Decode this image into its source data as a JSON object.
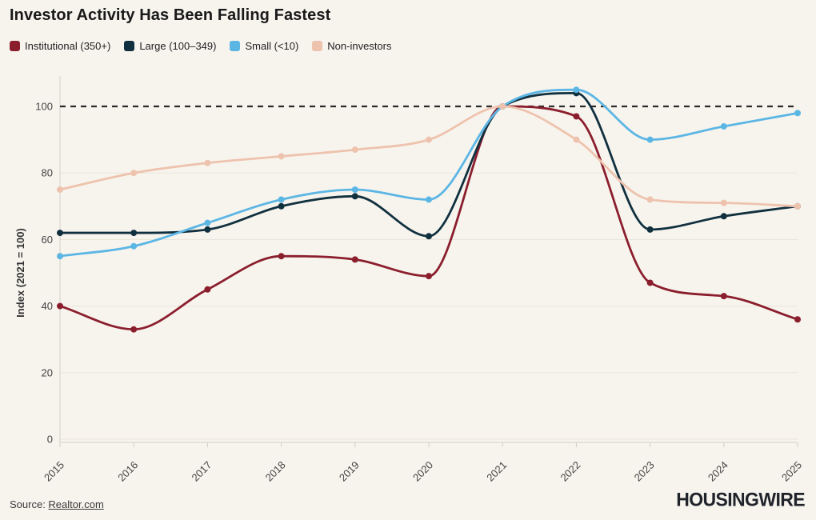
{
  "title": "Investor Activity Has Been Falling Fastest",
  "footer": {
    "source_prefix": "Source: ",
    "source_link": "Realtor.com",
    "brand": "HOUSINGWIRE"
  },
  "colors": {
    "background": "#f7f4ee",
    "gridline": "#e9e5dc",
    "axis": "#d3cfc6",
    "tick_text": "#434343",
    "reference_line": "#2b2b2b"
  },
  "chart_data": {
    "type": "line",
    "x": [
      2015,
      2016,
      2017,
      2018,
      2019,
      2020,
      2021,
      2022,
      2023,
      2024,
      2025
    ],
    "series": [
      {
        "name": "Institutional (350+)",
        "color": "#8b1e2d",
        "values": [
          40,
          33,
          45,
          55,
          54,
          49,
          100,
          97,
          47,
          43,
          36
        ]
      },
      {
        "name": "Large (100–349)",
        "color": "#11303f",
        "values": [
          62,
          62,
          63,
          70,
          73,
          61,
          100,
          104,
          63,
          67,
          70
        ]
      },
      {
        "name": "Small (<10)",
        "color": "#5cb6e4",
        "values": [
          55,
          58,
          65,
          72,
          75,
          72,
          100,
          105,
          90,
          94,
          98
        ]
      },
      {
        "name": "Non-investors",
        "color": "#eec3ae",
        "values": [
          75,
          80,
          83,
          85,
          87,
          90,
          100,
          90,
          72,
          71,
          70
        ]
      }
    ],
    "title": "Investor Activity Has Been Falling Fastest",
    "xlabel": "",
    "ylabel": "Index (2021 = 100)",
    "yticks": [
      0,
      20,
      40,
      60,
      80,
      100
    ],
    "ylim": [
      0,
      109
    ],
    "reference_line": {
      "value": 100,
      "style": "dashed"
    },
    "grid": "horizontal",
    "legend_position": "top",
    "point_markers": true
  }
}
